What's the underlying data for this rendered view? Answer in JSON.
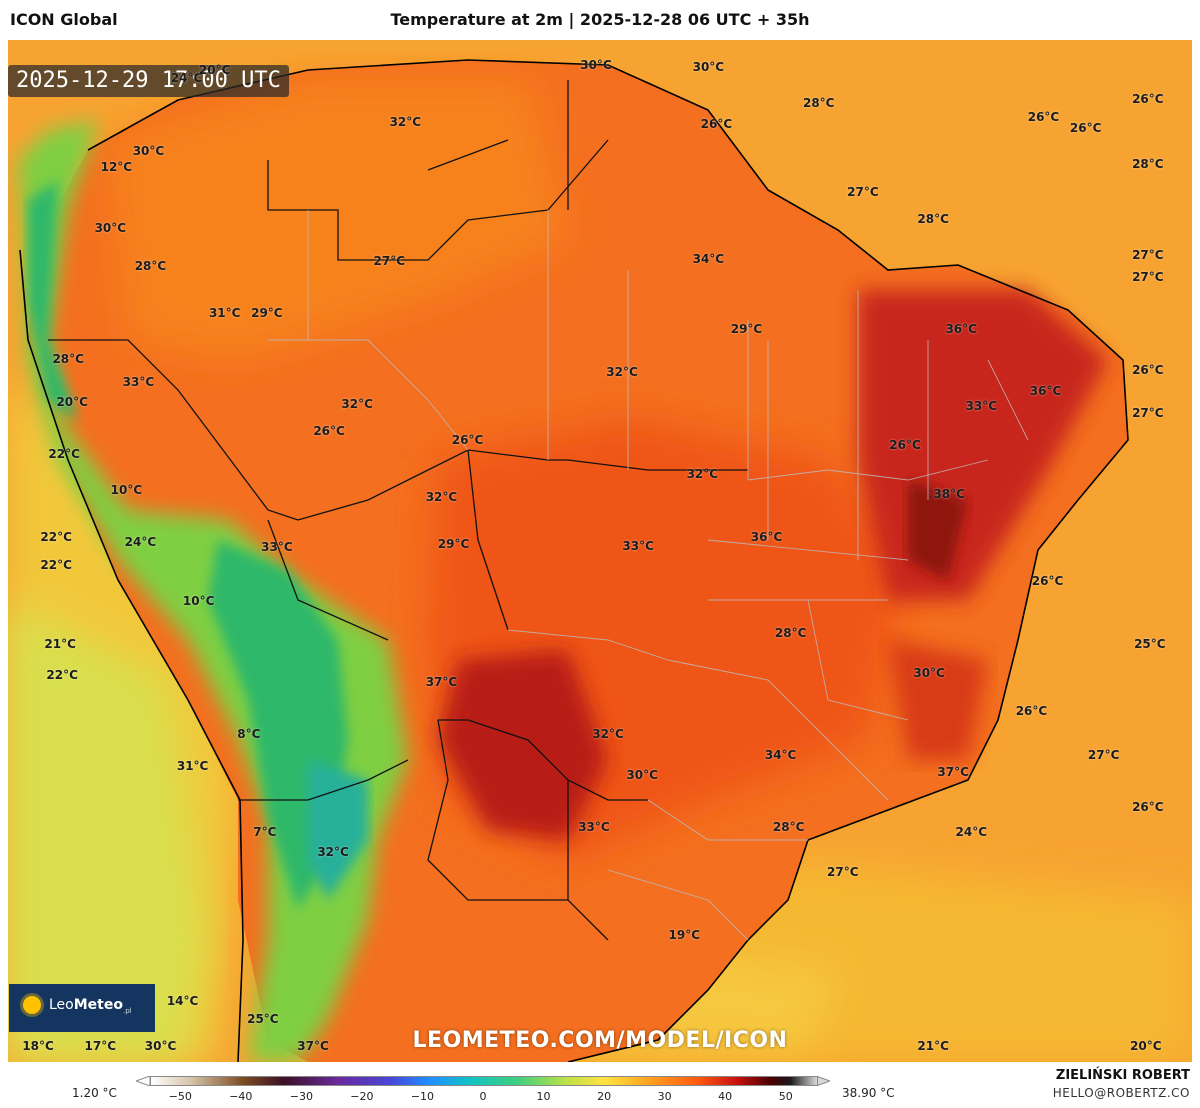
{
  "header": {
    "model": "ICON Global",
    "title": "Temperature at 2m | 2025-12-28 06 UTC + 35h"
  },
  "map": {
    "timestamp": "2025-12-29 17:00 UTC",
    "url_watermark": "LEOMETEO.COM/MODEL/ICON",
    "logo": {
      "brand_a": "Leo",
      "brand_b": "Meteo",
      "suffix": ".pl"
    },
    "labels": [
      {
        "text": "24°C",
        "lon": -76.3,
        "lat": 11.9
      },
      {
        "text": "20°C",
        "lon": -74.9,
        "lat": 12.3
      },
      {
        "text": "30°C",
        "lon": -55.9,
        "lat": 12.6
      },
      {
        "text": "32°C",
        "lon": -65.4,
        "lat": 9.4
      },
      {
        "text": "12°C",
        "lon": -79.8,
        "lat": 6.9
      },
      {
        "text": "30°C",
        "lon": -78.2,
        "lat": 7.8
      },
      {
        "text": "30°C",
        "lon": -80.1,
        "lat": 3.5
      },
      {
        "text": "28°C",
        "lon": -78.1,
        "lat": 1.4
      },
      {
        "text": "27°C",
        "lon": -66.2,
        "lat": 1.7
      },
      {
        "text": "31°C",
        "lon": -74.4,
        "lat": -1.2
      },
      {
        "text": "29°C",
        "lon": -72.3,
        "lat": -1.2
      },
      {
        "text": "28°C",
        "lon": -82.2,
        "lat": -3.8
      },
      {
        "text": "33°C",
        "lon": -78.7,
        "lat": -5.1
      },
      {
        "text": "20°C",
        "lon": -82.0,
        "lat": -6.2
      },
      {
        "text": "32°C",
        "lon": -67.8,
        "lat": -6.3
      },
      {
        "text": "26°C",
        "lon": -69.2,
        "lat": -7.8
      },
      {
        "text": "26°C",
        "lon": -62.3,
        "lat": -8.3
      },
      {
        "text": "22°C",
        "lon": -82.4,
        "lat": -9.1
      },
      {
        "text": "10°C",
        "lon": -79.3,
        "lat": -11.1
      },
      {
        "text": "32°C",
        "lon": -63.6,
        "lat": -11.5
      },
      {
        "text": "22°C",
        "lon": -82.8,
        "lat": -13.7
      },
      {
        "text": "24°C",
        "lon": -78.6,
        "lat": -14.0
      },
      {
        "text": "29°C",
        "lon": -63.0,
        "lat": -14.1
      },
      {
        "text": "22°C",
        "lon": -82.8,
        "lat": -15.3
      },
      {
        "text": "33°C",
        "lon": -71.8,
        "lat": -14.3
      },
      {
        "text": "10°C",
        "lon": -75.7,
        "lat": -17.3
      },
      {
        "text": "21°C",
        "lon": -82.6,
        "lat": -19.7
      },
      {
        "text": "22°C",
        "lon": -82.5,
        "lat": -21.4
      },
      {
        "text": "37°C",
        "lon": -63.6,
        "lat": -21.8
      },
      {
        "text": "8°C",
        "lon": -73.2,
        "lat": -24.7
      },
      {
        "text": "31°C",
        "lon": -76.0,
        "lat": -26.5
      },
      {
        "text": "7°C",
        "lon": -72.4,
        "lat": -30.2
      },
      {
        "text": "32°C",
        "lon": -69.0,
        "lat": -31.3
      },
      {
        "text": "19°C",
        "lon": -51.5,
        "lat": -35.9
      },
      {
        "text": "14°C",
        "lon": -76.5,
        "lat": -39.6
      },
      {
        "text": "25°C",
        "lon": -72.5,
        "lat": -40.6
      },
      {
        "text": "18°C",
        "lon": -83.7,
        "lat": -42.1
      },
      {
        "text": "17°C",
        "lon": -80.6,
        "lat": -42.1
      },
      {
        "text": "30°C",
        "lon": -77.6,
        "lat": -42.1
      },
      {
        "text": "37°C",
        "lon": -70.0,
        "lat": -42.1
      },
      {
        "text": "30°C",
        "lon": -50.3,
        "lat": 12.5
      },
      {
        "text": "28°C",
        "lon": -44.8,
        "lat": 10.5
      },
      {
        "text": "26°C",
        "lon": -33.6,
        "lat": 9.7
      },
      {
        "text": "26°C",
        "lon": -31.5,
        "lat": 9.1
      },
      {
        "text": "26°C",
        "lon": -28.4,
        "lat": 10.7
      },
      {
        "text": "28°C",
        "lon": -28.4,
        "lat": 7.1
      },
      {
        "text": "26°C",
        "lon": -49.9,
        "lat": 9.3
      },
      {
        "text": "27°C",
        "lon": -42.6,
        "lat": 5.5
      },
      {
        "text": "28°C",
        "lon": -39.1,
        "lat": 4.0
      },
      {
        "text": "34°C",
        "lon": -50.3,
        "lat": 1.8
      },
      {
        "text": "27°C",
        "lon": -28.4,
        "lat": 2.0
      },
      {
        "text": "27°C",
        "lon": -28.4,
        "lat": 0.8
      },
      {
        "text": "29°C",
        "lon": -48.4,
        "lat": -2.1
      },
      {
        "text": "36°C",
        "lon": -37.7,
        "lat": -2.1
      },
      {
        "text": "32°C",
        "lon": -54.6,
        "lat": -4.5
      },
      {
        "text": "36°C",
        "lon": -33.5,
        "lat": -5.6
      },
      {
        "text": "26°C",
        "lon": -28.4,
        "lat": -4.4
      },
      {
        "text": "33°C",
        "lon": -36.7,
        "lat": -6.4
      },
      {
        "text": "27°C",
        "lon": -28.4,
        "lat": -6.8
      },
      {
        "text": "26°C",
        "lon": -40.5,
        "lat": -8.6
      },
      {
        "text": "32°C",
        "lon": -50.6,
        "lat": -10.2
      },
      {
        "text": "38°C",
        "lon": -38.3,
        "lat": -11.3
      },
      {
        "text": "36°C",
        "lon": -47.4,
        "lat": -13.7
      },
      {
        "text": "33°C",
        "lon": -53.8,
        "lat": -14.2
      },
      {
        "text": "26°C",
        "lon": -33.4,
        "lat": -16.2
      },
      {
        "text": "28°C",
        "lon": -46.2,
        "lat": -19.1
      },
      {
        "text": "25°C",
        "lon": -28.3,
        "lat": -19.7
      },
      {
        "text": "30°C",
        "lon": -39.3,
        "lat": -21.3
      },
      {
        "text": "26°C",
        "lon": -34.2,
        "lat": -23.4
      },
      {
        "text": "32°C",
        "lon": -55.3,
        "lat": -24.7
      },
      {
        "text": "34°C",
        "lon": -46.7,
        "lat": -25.9
      },
      {
        "text": "27°C",
        "lon": -30.6,
        "lat": -25.9
      },
      {
        "text": "37°C",
        "lon": -38.1,
        "lat": -26.8
      },
      {
        "text": "30°C",
        "lon": -53.6,
        "lat": -27.0
      },
      {
        "text": "26°C",
        "lon": -28.4,
        "lat": -28.8
      },
      {
        "text": "33°C",
        "lon": -56.0,
        "lat": -29.9
      },
      {
        "text": "28°C",
        "lon": -46.3,
        "lat": -29.9
      },
      {
        "text": "24°C",
        "lon": -37.2,
        "lat": -30.2
      },
      {
        "text": "27°C",
        "lon": -43.6,
        "lat": -32.4
      },
      {
        "text": "21°C",
        "lon": -39.1,
        "lat": -42.1
      },
      {
        "text": "20°C",
        "lon": -28.5,
        "lat": -42.1
      }
    ]
  },
  "legend": {
    "min_value": "1.20 °C",
    "max_value": "38.90 °C",
    "ticks": [
      "−50",
      "−40",
      "−30",
      "−20",
      "−10",
      "0",
      "10",
      "20",
      "30",
      "40",
      "50"
    ],
    "tick_values": [
      -50,
      -40,
      -30,
      -20,
      -10,
      0,
      10,
      20,
      30,
      40,
      50
    ],
    "scale_min": -55,
    "scale_max": 55,
    "author": "ZIELIŃSKI ROBERT",
    "email": "HELLO@ROBERTZ.CO"
  }
}
